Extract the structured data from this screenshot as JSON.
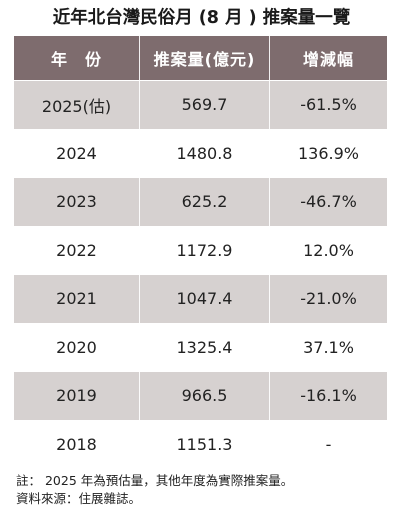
{
  "title": "近年北台灣民俗月 (8 月 ) 推案量一覽",
  "chart_data": {
    "type": "table",
    "columns": [
      "年　份",
      "推案量(億元)",
      "增減幅"
    ],
    "rows": [
      {
        "year": "2025(估)",
        "value": "569.7",
        "change": "-61.5%"
      },
      {
        "year": "2024",
        "value": "1480.8",
        "change": "136.9%"
      },
      {
        "year": "2023",
        "value": "625.2",
        "change": "-46.7%"
      },
      {
        "year": "2022",
        "value": "1172.9",
        "change": "12.0%"
      },
      {
        "year": "2021",
        "value": "1047.4",
        "change": "-21.0%"
      },
      {
        "year": "2020",
        "value": "1325.4",
        "change": "37.1%"
      },
      {
        "year": "2019",
        "value": "966.5",
        "change": "-16.1%"
      },
      {
        "year": "2018",
        "value": "1151.3",
        "change": "-"
      }
    ]
  },
  "notes": {
    "line1": "註： 2025 年為預估量，其他年度為實際推案量。",
    "line2": "資料來源：住展雜誌。"
  },
  "colors": {
    "header_bg": "#7e6c6e",
    "band_bg": "#d6d1d0"
  }
}
